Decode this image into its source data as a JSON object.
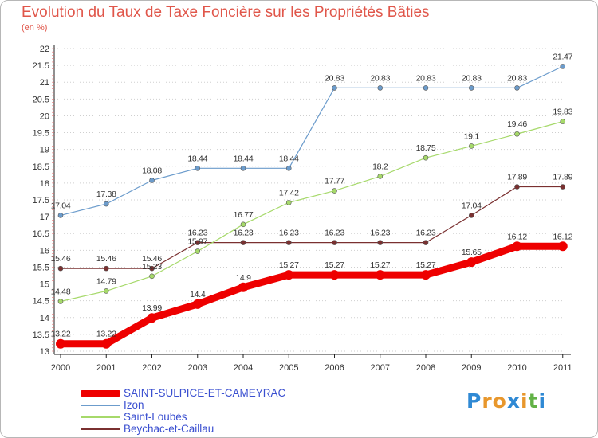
{
  "title": "Evolution du Taux de Taxe Foncière sur les Propriétés Bâties",
  "subtitle": "(en %)",
  "logo": {
    "letters": [
      "P",
      "r",
      "o",
      "x",
      "i",
      "t",
      "i"
    ],
    "colors": [
      "#2f89d4",
      "#e8972c",
      "#e8972c",
      "#2f89d4",
      "#e8972c",
      "#62b246",
      "#2f89d4"
    ]
  },
  "chart_data": {
    "type": "line",
    "title": "Evolution du Taux de Taxe Foncière sur les Propriétés Bâties",
    "ylabel": "(en %)",
    "xlabel": "",
    "x": [
      "2000",
      "2001",
      "2002",
      "2003",
      "2004",
      "2005",
      "2006",
      "2007",
      "2008",
      "2009",
      "2010",
      "2011"
    ],
    "ylim": [
      13,
      22
    ],
    "yticks": [
      "13",
      "13.5",
      "14",
      "14.5",
      "15",
      "15.5",
      "16",
      "16.5",
      "17",
      "17.5",
      "18",
      "18.5",
      "19",
      "19.5",
      "20",
      "20.5",
      "21",
      "21.5",
      "22"
    ],
    "grid": "horizontal dotted",
    "legend_position": "bottom-left",
    "series": [
      {
        "name": "SAINT-SULPICE-ET-CAMEYRAC",
        "color": "#ee0000",
        "values": [
          13.22,
          13.22,
          13.99,
          14.4,
          14.9,
          15.27,
          15.27,
          15.27,
          15.27,
          15.65,
          16.12,
          16.12
        ],
        "labels": [
          "13.22",
          "13.22",
          "13.99",
          "14.4",
          "14.9",
          "15.27",
          "15.27",
          "15.27",
          "15.27",
          "15.65",
          "16.12",
          "16.12"
        ]
      },
      {
        "name": "Izon",
        "color": "#6c9ccc",
        "values": [
          17.04,
          17.38,
          18.08,
          18.44,
          18.44,
          18.44,
          20.83,
          20.83,
          20.83,
          20.83,
          20.83,
          21.47
        ],
        "labels": [
          "17.04",
          "17.38",
          "18.08",
          "18.44",
          "18.44",
          "18.44",
          "20.83",
          "20.83",
          "20.83",
          "20.83",
          "20.83",
          "21.47"
        ]
      },
      {
        "name": "Saint-Loubès",
        "color": "#a6d96a",
        "values": [
          14.48,
          14.79,
          15.23,
          15.97,
          16.77,
          17.42,
          17.77,
          18.2,
          18.75,
          19.1,
          19.46,
          19.83
        ],
        "labels": [
          "14.48",
          "14.79",
          "15.23",
          "15.97",
          "16.77",
          "17.42",
          "17.77",
          "18.2",
          "18.75",
          "19.1",
          "19.46",
          "19.83"
        ]
      },
      {
        "name": "Beychac-et-Caillau",
        "color": "#7a3030",
        "values": [
          15.46,
          15.46,
          15.46,
          16.23,
          16.23,
          16.23,
          16.23,
          16.23,
          16.23,
          17.04,
          17.89,
          17.89
        ],
        "labels": [
          "15.46",
          "15.46",
          "15.46",
          "16.23",
          "16.23",
          "16.23",
          "16.23",
          "16.23",
          "16.23",
          "17.04",
          "17.89",
          "17.89"
        ]
      }
    ]
  }
}
